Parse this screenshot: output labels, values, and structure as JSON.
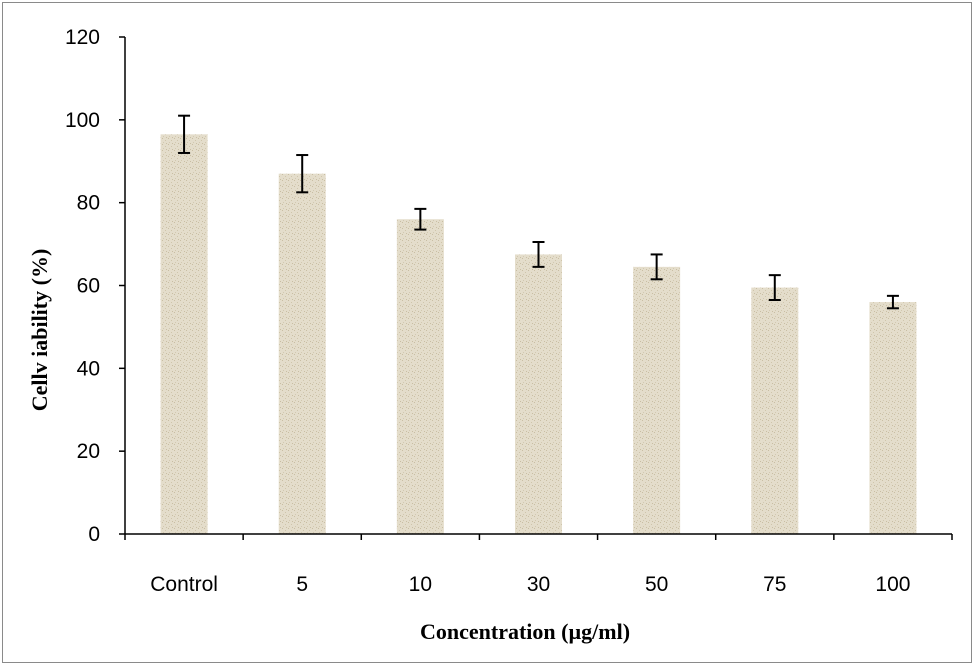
{
  "chart_data": {
    "type": "bar",
    "title": "",
    "xlabel": "Concentration (µg/ml)",
    "ylabel": "Cellv iability (%)",
    "categories": [
      "Control",
      "5",
      "10",
      "30",
      "50",
      "75",
      "100"
    ],
    "values": [
      96.5,
      87,
      76,
      67.5,
      64.5,
      59.5,
      56
    ],
    "errors": [
      4.5,
      4.5,
      2.5,
      3,
      3,
      3,
      1.5
    ],
    "ylim": [
      0,
      120
    ],
    "yticks": [
      0,
      20,
      40,
      60,
      80,
      100,
      120
    ],
    "ytick_labels": [
      "0",
      "20",
      "40",
      "60",
      "80",
      "100",
      "120"
    ],
    "grid": false,
    "legend": "none"
  },
  "colors": {
    "bar_fill": "#e4ddcb",
    "bar_texture": "#c9bea3",
    "axis": "#000000",
    "error_bar": "#000000"
  }
}
